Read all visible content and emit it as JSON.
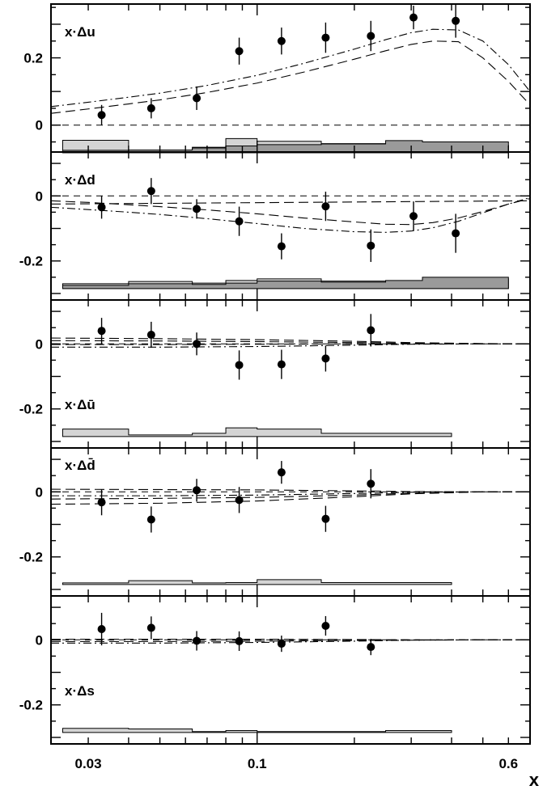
{
  "chart_data": {
    "type": "scatter",
    "xscale": "log",
    "xlim": [
      0.023,
      0.7
    ],
    "x_ticks": [
      "0.03",
      "0.1",
      "0.6"
    ],
    "x_tick_values": [
      0.03,
      0.1,
      0.6
    ],
    "xlabel": "x",
    "panels": [
      {
        "label": "x·Δu",
        "ylim": [
          -0.08,
          0.36
        ],
        "y_ticks": [
          "0.2",
          "0"
        ],
        "y_tick_values": [
          0.2,
          0
        ],
        "points": {
          "x": [
            0.033,
            0.047,
            0.065,
            0.088,
            0.119,
            0.163,
            0.225,
            0.305,
            0.412
          ],
          "y": [
            0.03,
            0.05,
            0.08,
            0.22,
            0.25,
            0.26,
            0.265,
            0.32,
            0.31
          ],
          "err": [
            0.03,
            0.03,
            0.035,
            0.04,
            0.04,
            0.045,
            0.045,
            0.035,
            0.05
          ]
        },
        "curves": [
          {
            "style": "dashdot",
            "x": [
              0.023,
              0.03,
              0.04,
              0.05,
              0.07,
              0.1,
              0.14,
              0.2,
              0.25,
              0.3,
              0.35,
              0.42,
              0.5,
              0.6,
              0.7
            ],
            "y": [
              0.055,
              0.068,
              0.083,
              0.095,
              0.118,
              0.148,
              0.184,
              0.226,
              0.254,
              0.275,
              0.285,
              0.283,
              0.25,
              0.18,
              0.1
            ]
          },
          {
            "style": "dashed",
            "x": [
              0.023,
              0.03,
              0.04,
              0.05,
              0.07,
              0.1,
              0.14,
              0.2,
              0.25,
              0.3,
              0.35,
              0.42,
              0.5,
              0.6,
              0.7
            ],
            "y": [
              0.035,
              0.048,
              0.063,
              0.075,
              0.097,
              0.125,
              0.158,
              0.196,
              0.221,
              0.24,
              0.25,
              0.248,
              0.2,
              0.13,
              0.06
            ]
          }
        ],
        "bands": [
          {
            "fill": "#d4d4d4",
            "bins": [
              [
                0.025,
                0.04,
                -0.045
              ],
              [
                0.04,
                0.063,
                -0.075
              ],
              [
                0.063,
                0.08,
                -0.066
              ],
              [
                0.08,
                0.1,
                -0.04
              ],
              [
                0.1,
                0.158,
                -0.048
              ],
              [
                0.158,
                0.25,
                -0.055
              ],
              [
                0.25,
                0.6,
                -0.06
              ]
            ]
          },
          {
            "fill": "#9a9a9a",
            "bins": [
              [
                0.025,
                0.04,
                -0.075
              ],
              [
                0.04,
                0.063,
                -0.074
              ],
              [
                0.063,
                0.08,
                -0.068
              ],
              [
                0.08,
                0.1,
                -0.062
              ],
              [
                0.1,
                0.158,
                -0.058
              ],
              [
                0.158,
                0.25,
                -0.056
              ],
              [
                0.25,
                0.325,
                -0.046
              ],
              [
                0.325,
                0.6,
                -0.05
              ]
            ]
          }
        ],
        "band_base": -0.082
      },
      {
        "label": "x·Δd",
        "ylim": [
          -0.32,
          0.135
        ],
        "y_ticks": [
          "0",
          "-0.2"
        ],
        "y_tick_values": [
          0,
          -0.2
        ],
        "points": {
          "x": [
            0.033,
            0.047,
            0.065,
            0.088,
            0.119,
            0.163,
            0.225,
            0.305,
            0.412
          ],
          "y": [
            -0.035,
            0.015,
            -0.04,
            -0.078,
            -0.155,
            -0.032,
            -0.153,
            -0.062,
            -0.115
          ],
          "err": [
            0.035,
            0.04,
            0.03,
            0.045,
            0.04,
            0.045,
            0.05,
            0.045,
            0.06
          ]
        },
        "curves": [
          {
            "style": "dashdot",
            "x": [
              0.023,
              0.03,
              0.04,
              0.05,
              0.07,
              0.1,
              0.14,
              0.2,
              0.25,
              0.3,
              0.35,
              0.42,
              0.5,
              0.6,
              0.7
            ],
            "y": [
              -0.035,
              -0.042,
              -0.05,
              -0.057,
              -0.07,
              -0.085,
              -0.1,
              -0.11,
              -0.112,
              -0.108,
              -0.098,
              -0.078,
              -0.052,
              -0.025,
              -0.005
            ]
          },
          {
            "style": "dashed",
            "x": [
              0.023,
              0.03,
              0.04,
              0.05,
              0.07,
              0.1,
              0.14,
              0.2,
              0.25,
              0.3,
              0.35,
              0.42,
              0.5,
              0.6,
              0.7
            ],
            "y": [
              -0.015,
              -0.02,
              -0.027,
              -0.033,
              -0.043,
              -0.055,
              -0.068,
              -0.08,
              -0.087,
              -0.088,
              -0.082,
              -0.068,
              -0.048,
              -0.025,
              -0.008
            ]
          },
          {
            "style": "dashed",
            "x": [
              0.023,
              0.7
            ],
            "y": [
              -0.025,
              -0.015
            ]
          }
        ],
        "bands": [
          {
            "fill": "#d4d4d4",
            "bins": [
              [
                0.025,
                0.04,
                -0.27
              ],
              [
                0.04,
                0.063,
                -0.263
              ],
              [
                0.063,
                0.08,
                -0.268
              ],
              [
                0.08,
                0.1,
                -0.26
              ],
              [
                0.1,
                0.158,
                -0.255
              ],
              [
                0.158,
                0.325,
                -0.262
              ],
              [
                0.325,
                0.6,
                -0.255
              ]
            ]
          },
          {
            "fill": "#9a9a9a",
            "bins": [
              [
                0.025,
                0.04,
                -0.275
              ],
              [
                0.04,
                0.063,
                -0.27
              ],
              [
                0.063,
                0.08,
                -0.272
              ],
              [
                0.08,
                0.1,
                -0.268
              ],
              [
                0.1,
                0.158,
                -0.262
              ],
              [
                0.158,
                0.25,
                -0.265
              ],
              [
                0.25,
                0.325,
                -0.26
              ],
              [
                0.325,
                0.6,
                -0.25
              ]
            ]
          }
        ],
        "band_base": -0.285
      },
      {
        "label": "x·Δū",
        "ylim": [
          -0.32,
          0.135
        ],
        "y_ticks": [
          "0",
          "-0.2"
        ],
        "y_tick_values": [
          0,
          -0.2
        ],
        "points": {
          "x": [
            0.033,
            0.047,
            0.065,
            0.088,
            0.119,
            0.163,
            0.225
          ],
          "y": [
            0.04,
            0.028,
            0.0,
            -0.065,
            -0.063,
            -0.045,
            0.042
          ],
          "err": [
            0.04,
            0.04,
            0.035,
            0.045,
            0.045,
            0.04,
            0.05
          ]
        },
        "curves": [
          {
            "style": "dashdot",
            "x": [
              0.023,
              0.05,
              0.1,
              0.2,
              0.3,
              0.5,
              0.7
            ],
            "y": [
              -0.01,
              -0.01,
              -0.008,
              -0.004,
              -0.001,
              0.0,
              0.0
            ]
          },
          {
            "style": "dashed",
            "x": [
              0.023,
              0.05,
              0.1,
              0.2,
              0.3,
              0.5,
              0.7
            ],
            "y": [
              0.01,
              0.009,
              0.007,
              0.004,
              0.002,
              0.0,
              0.0
            ]
          },
          {
            "style": "dashed",
            "x": [
              0.023,
              0.05,
              0.1,
              0.2,
              0.3,
              0.5,
              0.7
            ],
            "y": [
              0.018,
              0.016,
              0.013,
              0.008,
              0.004,
              0.001,
              0.0
            ]
          },
          {
            "style": "dashed",
            "x": [
              0.023,
              0.05,
              0.1,
              0.2,
              0.3,
              0.5,
              0.7
            ],
            "y": [
              -0.002,
              -0.002,
              -0.001,
              0.0,
              0.0,
              0.0,
              0.0
            ]
          }
        ],
        "bands": [
          {
            "fill": "#d4d4d4",
            "bins": [
              [
                0.025,
                0.04,
                -0.262
              ],
              [
                0.04,
                0.063,
                -0.28
              ],
              [
                0.063,
                0.08,
                -0.275
              ],
              [
                0.08,
                0.1,
                -0.258
              ],
              [
                0.1,
                0.158,
                -0.262
              ],
              [
                0.158,
                0.25,
                -0.275
              ],
              [
                0.25,
                0.4,
                -0.275
              ]
            ]
          }
        ],
        "band_base": -0.285
      },
      {
        "label": "x·Δd̄",
        "ylim": [
          -0.32,
          0.135
        ],
        "y_ticks": [
          "0",
          "-0.2"
        ],
        "y_tick_values": [
          0,
          -0.2
        ],
        "points": {
          "x": [
            0.033,
            0.047,
            0.065,
            0.088,
            0.119,
            0.163,
            0.225
          ],
          "y": [
            -0.032,
            -0.085,
            0.005,
            -0.025,
            0.06,
            -0.083,
            0.025
          ],
          "err": [
            0.04,
            0.04,
            0.035,
            0.04,
            0.035,
            0.04,
            0.045
          ]
        },
        "curves": [
          {
            "style": "dashdot",
            "x": [
              0.023,
              0.05,
              0.1,
              0.2,
              0.3,
              0.5,
              0.7
            ],
            "y": [
              -0.012,
              -0.012,
              -0.01,
              -0.005,
              -0.001,
              0.0,
              0.0
            ]
          },
          {
            "style": "dashed",
            "x": [
              0.023,
              0.05,
              0.1,
              0.2,
              0.3,
              0.5,
              0.7
            ],
            "y": [
              0.008,
              0.007,
              0.006,
              0.003,
              0.001,
              0.0,
              0.0
            ]
          },
          {
            "style": "dashed",
            "x": [
              0.023,
              0.05,
              0.1,
              0.2,
              0.3,
              0.5,
              0.7
            ],
            "y": [
              -0.022,
              -0.02,
              -0.017,
              -0.01,
              -0.004,
              0.0,
              0.0
            ]
          },
          {
            "style": "dashed",
            "x": [
              0.023,
              0.05,
              0.1,
              0.2,
              0.3,
              0.5,
              0.7
            ],
            "y": [
              -0.038,
              -0.035,
              -0.028,
              -0.015,
              -0.006,
              0.0,
              0.0
            ]
          }
        ],
        "bands": [
          {
            "fill": "#d4d4d4",
            "bins": [
              [
                0.025,
                0.04,
                -0.28
              ],
              [
                0.04,
                0.063,
                -0.273
              ],
              [
                0.063,
                0.08,
                -0.28
              ],
              [
                0.08,
                0.1,
                -0.279
              ],
              [
                0.1,
                0.158,
                -0.27
              ],
              [
                0.158,
                0.25,
                -0.279
              ],
              [
                0.25,
                0.4,
                -0.279
              ]
            ]
          }
        ],
        "band_base": -0.285
      },
      {
        "label": "x·Δs",
        "ylim": [
          -0.32,
          0.135
        ],
        "y_ticks": [
          "0",
          "-0.2"
        ],
        "y_tick_values": [
          0,
          -0.2
        ],
        "points": {
          "x": [
            0.033,
            0.047,
            0.065,
            0.088,
            0.119,
            0.163,
            0.225
          ],
          "y": [
            0.033,
            0.037,
            -0.003,
            -0.004,
            -0.012,
            0.043,
            -0.022
          ],
          "err": [
            0.05,
            0.035,
            0.03,
            0.03,
            0.025,
            0.03,
            0.025
          ]
        },
        "curves": [
          {
            "style": "dashdot",
            "x": [
              0.023,
              0.05,
              0.1,
              0.2,
              0.3,
              0.5,
              0.7
            ],
            "y": [
              -0.01,
              -0.01,
              -0.008,
              -0.004,
              -0.001,
              0.0,
              0.0
            ]
          },
          {
            "style": "dashed",
            "x": [
              0.023,
              0.05,
              0.1,
              0.2,
              0.3,
              0.5,
              0.7
            ],
            "y": [
              0.002,
              0.002,
              0.002,
              0.001,
              0.0,
              0.0,
              0.0
            ]
          },
          {
            "style": "dashed",
            "x": [
              0.023,
              0.05,
              0.1,
              0.2,
              0.3,
              0.5,
              0.7
            ],
            "y": [
              -0.005,
              -0.005,
              -0.004,
              -0.002,
              -0.001,
              0.0,
              0.0
            ]
          }
        ],
        "bands": [
          {
            "fill": "#d4d4d4",
            "bins": [
              [
                0.025,
                0.04,
                -0.272
              ],
              [
                0.04,
                0.063,
                -0.274
              ],
              [
                0.063,
                0.08,
                -0.282
              ],
              [
                0.08,
                0.1,
                -0.279
              ],
              [
                0.1,
                0.158,
                -0.282
              ],
              [
                0.158,
                0.25,
                -0.282
              ],
              [
                0.25,
                0.4,
                -0.279
              ]
            ]
          }
        ],
        "band_base": -0.285
      }
    ]
  }
}
